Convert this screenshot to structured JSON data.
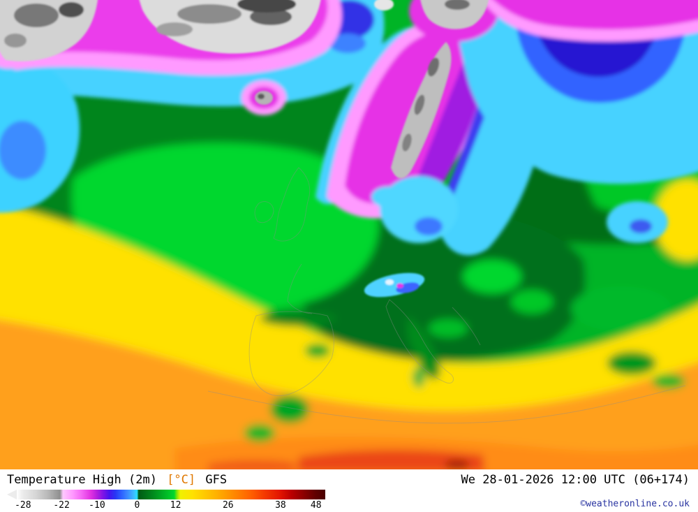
{
  "footer": {
    "title_prefix": "Temperature High (2m)",
    "unit": "[°C]",
    "model": "GFS",
    "timestamp": "We 28-01-2026 12:00 UTC (06+174)",
    "copyright": "©weatheronline.co.uk"
  },
  "legend": {
    "ticks": [
      {
        "label": "-28",
        "pct": 2
      },
      {
        "label": "-22",
        "pct": 14.5
      },
      {
        "label": "-10",
        "pct": 26
      },
      {
        "label": "0",
        "pct": 39
      },
      {
        "label": "12",
        "pct": 51.5
      },
      {
        "label": "26",
        "pct": 68.5
      },
      {
        "label": "38",
        "pct": 85.5
      },
      {
        "label": "48",
        "pct": 97
      }
    ],
    "stops": [
      [
        0,
        "#ffffff"
      ],
      [
        2,
        "#ebebeb"
      ],
      [
        6,
        "#d7d7d7"
      ],
      [
        10,
        "#b9b9b9"
      ],
      [
        14,
        "#8f8f8f"
      ],
      [
        15,
        "#ffc8ff"
      ],
      [
        18,
        "#ff9bff"
      ],
      [
        21,
        "#f568f5"
      ],
      [
        24,
        "#e132e1"
      ],
      [
        26,
        "#b41ede"
      ],
      [
        28,
        "#7d14e6"
      ],
      [
        30,
        "#4514ee"
      ],
      [
        32,
        "#2837f5"
      ],
      [
        34,
        "#2d62ff"
      ],
      [
        36,
        "#3c8cff"
      ],
      [
        38,
        "#3cbeff"
      ],
      [
        39,
        "#28e1ff"
      ],
      [
        39.5,
        "#005a14"
      ],
      [
        43,
        "#007d1a"
      ],
      [
        47,
        "#00aa23"
      ],
      [
        51,
        "#00d72d"
      ],
      [
        52,
        "#8ce600"
      ],
      [
        53,
        "#f0f000"
      ],
      [
        57,
        "#ffe100"
      ],
      [
        61,
        "#ffc800"
      ],
      [
        65,
        "#ffaf00"
      ],
      [
        68.5,
        "#ff9600"
      ],
      [
        72,
        "#ff7d00"
      ],
      [
        76,
        "#ff5f00"
      ],
      [
        80,
        "#f53c00"
      ],
      [
        85.5,
        "#e11400"
      ],
      [
        89,
        "#bb0000"
      ],
      [
        93,
        "#8c0000"
      ],
      [
        97,
        "#5f0000"
      ],
      [
        100,
        "#4b0000"
      ]
    ]
  },
  "colors": {
    "unit_label": "#e07800",
    "copyright": "#2833a0",
    "footer_background": "#ffffff",
    "map_base_green": "#00b428",
    "cold_magenta": "#e632e6",
    "cold_cyan": "#46d2ff",
    "warm_yellow": "#ffe100",
    "warm_orange": "#ffa01e"
  }
}
